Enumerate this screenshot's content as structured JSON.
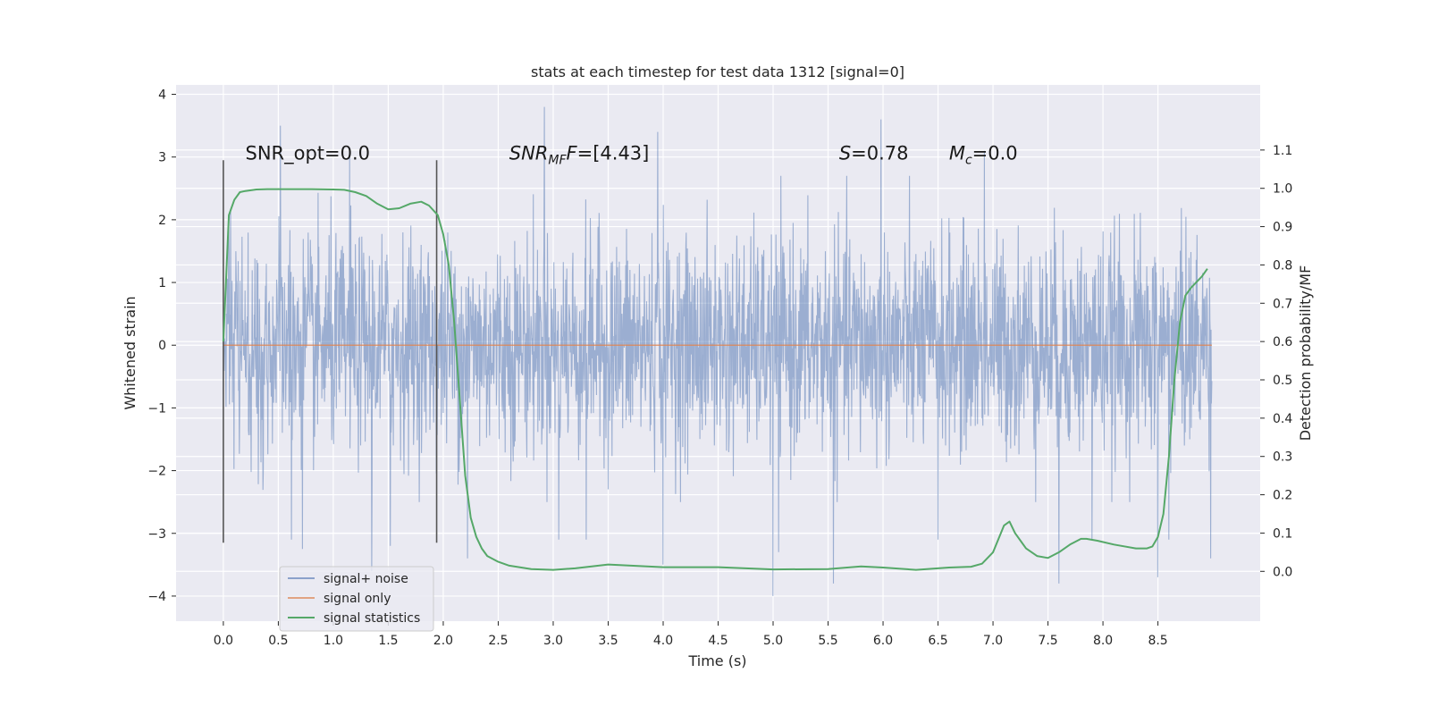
{
  "chart_data": {
    "type": "line",
    "title": "stats at each timestep for test data 1312 [signal=0]",
    "xlabel": "Time (s)",
    "ylabel": "Whitened strain",
    "y2label": "Detection probability/MF",
    "xlim": [
      -0.43,
      9.43
    ],
    "ylim": [
      -4.4,
      4.15
    ],
    "y2lim": [
      -0.13,
      1.27
    ],
    "xticks": [
      0.0,
      0.5,
      1.0,
      1.5,
      2.0,
      2.5,
      3.0,
      3.5,
      4.0,
      4.5,
      5.0,
      5.5,
      6.0,
      6.5,
      7.0,
      7.5,
      8.0,
      8.5
    ],
    "xtick_labels": [
      "0.0",
      "0.5",
      "1.0",
      "1.5",
      "2.0",
      "2.5",
      "3.0",
      "3.5",
      "4.0",
      "4.5",
      "5.0",
      "5.5",
      "6.0",
      "6.5",
      "7.0",
      "7.5",
      "8.0",
      "8.5"
    ],
    "yticks": [
      -4,
      -3,
      -2,
      -1,
      0,
      1,
      2,
      3,
      4
    ],
    "ytick_labels": [
      "−4",
      "−3",
      "−2",
      "−1",
      "0",
      "1",
      "2",
      "3",
      "4"
    ],
    "y2ticks": [
      0.0,
      0.1,
      0.2,
      0.3,
      0.4,
      0.5,
      0.6,
      0.7,
      0.8,
      0.9,
      1.0,
      1.1
    ],
    "y2tick_labels": [
      "0.0",
      "0.1",
      "0.2",
      "0.3",
      "0.4",
      "0.5",
      "0.6",
      "0.7",
      "0.8",
      "0.9",
      "1.0",
      "1.1"
    ],
    "grid": true,
    "legend_position": "lower-left",
    "noise": {
      "x_start": 0.0,
      "x_end": 8.99,
      "envelope_typical": [
        -1.6,
        1.8
      ],
      "extremes": [
        {
          "x": 0.52,
          "y": 3.5
        },
        {
          "x": 0.62,
          "y": -3.1
        },
        {
          "x": 0.72,
          "y": -3.25
        },
        {
          "x": 1.15,
          "y": 3.0
        },
        {
          "x": 1.35,
          "y": -3.6
        },
        {
          "x": 1.52,
          "y": -3.2
        },
        {
          "x": 2.22,
          "y": -3.4
        },
        {
          "x": 2.92,
          "y": 3.8
        },
        {
          "x": 3.05,
          "y": -3.1
        },
        {
          "x": 3.3,
          "y": -3.1
        },
        {
          "x": 3.95,
          "y": 3.4
        },
        {
          "x": 4.0,
          "y": -3.5
        },
        {
          "x": 5.0,
          "y": -4.0
        },
        {
          "x": 5.05,
          "y": -3.3
        },
        {
          "x": 5.55,
          "y": -3.8
        },
        {
          "x": 5.98,
          "y": 3.6
        },
        {
          "x": 6.5,
          "y": -3.1
        },
        {
          "x": 6.92,
          "y": 3.1
        },
        {
          "x": 7.6,
          "y": -3.8
        },
        {
          "x": 7.9,
          "y": -3.1
        },
        {
          "x": 8.5,
          "y": -3.7
        },
        {
          "x": 8.6,
          "y": -3.1
        },
        {
          "x": 8.98,
          "y": -3.4
        }
      ]
    },
    "markers": {
      "x": [
        0.0,
        1.94
      ],
      "y_range": [
        -3.15,
        2.95
      ]
    },
    "series": [
      {
        "name": "signal+ noise",
        "color": "#4c72b0"
      },
      {
        "name": "signal only",
        "color": "#dd8452",
        "x": [
          0.0,
          8.99
        ],
        "y": [
          0.0,
          0.0
        ]
      },
      {
        "name": "signal statistics",
        "color": "#55a868",
        "axis": "right",
        "x": [
          0.0,
          0.05,
          0.1,
          0.15,
          0.2,
          0.3,
          0.4,
          0.6,
          0.8,
          1.0,
          1.1,
          1.2,
          1.3,
          1.4,
          1.5,
          1.6,
          1.7,
          1.8,
          1.87,
          1.95,
          2.0,
          2.05,
          2.1,
          2.15,
          2.2,
          2.25,
          2.3,
          2.35,
          2.4,
          2.5,
          2.6,
          2.8,
          3.0,
          3.2,
          3.5,
          4.0,
          4.5,
          5.0,
          5.5,
          5.8,
          6.0,
          6.3,
          6.6,
          6.8,
          6.9,
          7.0,
          7.1,
          7.15,
          7.2,
          7.3,
          7.4,
          7.5,
          7.6,
          7.7,
          7.8,
          7.85,
          7.95,
          8.1,
          8.3,
          8.4,
          8.45,
          8.5,
          8.55,
          8.6,
          8.65,
          8.7,
          8.75,
          8.8,
          8.9,
          8.95
        ],
        "y": [
          0.6,
          0.93,
          0.97,
          0.99,
          0.993,
          0.997,
          0.998,
          0.998,
          0.998,
          0.997,
          0.996,
          0.99,
          0.98,
          0.96,
          0.945,
          0.948,
          0.96,
          0.965,
          0.955,
          0.93,
          0.88,
          0.8,
          0.65,
          0.45,
          0.25,
          0.14,
          0.09,
          0.06,
          0.04,
          0.025,
          0.015,
          0.006,
          0.004,
          0.008,
          0.018,
          0.011,
          0.011,
          0.005,
          0.006,
          0.013,
          0.01,
          0.004,
          0.01,
          0.012,
          0.02,
          0.05,
          0.12,
          0.13,
          0.1,
          0.06,
          0.04,
          0.035,
          0.05,
          0.07,
          0.085,
          0.085,
          0.08,
          0.07,
          0.06,
          0.06,
          0.065,
          0.09,
          0.15,
          0.3,
          0.5,
          0.65,
          0.72,
          0.74,
          0.77,
          0.79
        ]
      }
    ],
    "annotations": [
      {
        "text": "SNR_opt=0.0",
        "x": 0.2,
        "y": 3.0
      },
      {
        "text": "=[4.43]",
        "italic_base": "SNR",
        "sub": "MF",
        "italic_tail": "F",
        "x": 2.6,
        "y": 3.0
      },
      {
        "text": "=0.78",
        "italic_base": "S",
        "x": 5.6,
        "y": 3.0
      },
      {
        "text": "=0.0",
        "italic_base": "M",
        "sub": "c",
        "x": 6.6,
        "y": 3.0
      }
    ]
  }
}
